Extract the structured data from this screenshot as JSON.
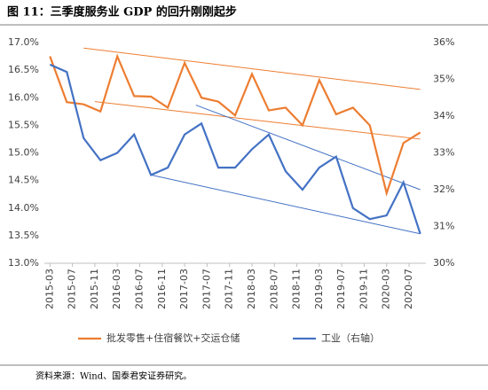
{
  "chart_data": {
    "type": "line",
    "title": "图 11：三季度服务业 GDP 的回升刚刚起步",
    "source": "资料来源：Wind、国泰君安证券研究。",
    "x": [
      "2015-03",
      "2015-06",
      "2015-09",
      "2015-12",
      "2016-03",
      "2016-06",
      "2016-09",
      "2016-12",
      "2017-03",
      "2017-06",
      "2017-09",
      "2017-12",
      "2018-03",
      "2018-06",
      "2018-09",
      "2018-12",
      "2019-03",
      "2019-06",
      "2019-09",
      "2019-12",
      "2020-03",
      "2020-06",
      "2020-09"
    ],
    "xlim": [
      "2015-02",
      "2020-10"
    ],
    "xticks": [
      "2015-03",
      "2015-07",
      "2015-11",
      "2016-03",
      "2016-07",
      "2016-11",
      "2017-03",
      "2017-07",
      "2017-11",
      "2018-03",
      "2018-07",
      "2018-11",
      "2019-03",
      "2019-07",
      "2019-11",
      "2020-03",
      "2020-07"
    ],
    "series": [
      {
        "name": "批发零售+住宿餐饮+交运仓储",
        "color": "#ED7D31",
        "values": [
          16.75,
          15.92,
          15.88,
          15.75,
          16.75,
          16.03,
          16.02,
          15.82,
          16.63,
          16.0,
          15.93,
          15.68,
          16.43,
          15.77,
          15.82,
          15.5,
          16.32,
          15.7,
          15.82,
          15.5,
          14.27,
          15.18,
          15.37
        ]
      },
      {
        "name": "工业（右轴）",
        "color": "#4472C4",
        "axis": "y2",
        "values": [
          35.4,
          35.2,
          33.4,
          32.8,
          33.0,
          33.5,
          32.4,
          32.6,
          33.5,
          33.8,
          32.6,
          32.6,
          33.1,
          33.5,
          32.5,
          32.0,
          32.6,
          32.9,
          31.5,
          31.2,
          31.3,
          32.2,
          30.8
        ]
      }
    ],
    "trend_lines": [
      {
        "color": "#ED7D31",
        "x": [
          "2015-09",
          "2020-09"
        ],
        "values": [
          16.9,
          16.15
        ]
      },
      {
        "color": "#ED7D31",
        "x": [
          "2015-11",
          "2020-09"
        ],
        "values": [
          15.93,
          15.25
        ]
      },
      {
        "color": "#4472C4",
        "axis": "y2",
        "x": [
          "2017-05",
          "2020-09"
        ],
        "values": [
          34.3,
          32.0
        ]
      },
      {
        "color": "#4472C4",
        "axis": "y2",
        "x": [
          "2016-09",
          "2020-09"
        ],
        "values": [
          32.4,
          30.8
        ]
      }
    ],
    "ylim": [
      13,
      17
    ],
    "yticks": [
      {
        "value": 13,
        "label": "13.0%"
      },
      {
        "value": 13.5,
        "label": "13.5%"
      },
      {
        "value": 14,
        "label": "14.0%"
      },
      {
        "value": 14.5,
        "label": "14.5%"
      },
      {
        "value": 15,
        "label": "15.0%"
      },
      {
        "value": 15.5,
        "label": "15.5%"
      },
      {
        "value": 16,
        "label": "16.0%"
      },
      {
        "value": 16.5,
        "label": "16.5%"
      },
      {
        "value": 17,
        "label": "17.0%"
      }
    ],
    "y2lim": [
      30,
      36
    ],
    "y2ticks": [
      {
        "value": 30,
        "label": "30%"
      },
      {
        "value": 31,
        "label": "31%"
      },
      {
        "value": 32,
        "label": "32%"
      },
      {
        "value": 33,
        "label": "33%"
      },
      {
        "value": 34,
        "label": "34%"
      },
      {
        "value": 35,
        "label": "35%"
      },
      {
        "value": 36,
        "label": "36%"
      }
    ],
    "grid": false,
    "legend": "bottom"
  }
}
